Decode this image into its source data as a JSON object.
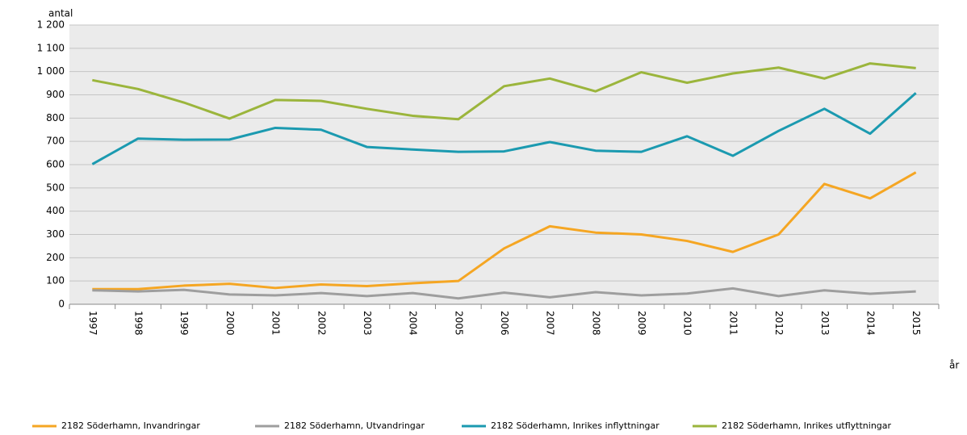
{
  "chart_data": {
    "type": "line",
    "ylabel": "antal",
    "xlabel": "år",
    "categories": [
      "1997",
      "1998",
      "1999",
      "2000",
      "2001",
      "2002",
      "2003",
      "2004",
      "2005",
      "2006",
      "2007",
      "2008",
      "2009",
      "2010",
      "2011",
      "2012",
      "2013",
      "2014",
      "2015"
    ],
    "series": [
      {
        "name": "2182 Söderhamn, Invandringar",
        "color": "#f5a623",
        "values": [
          65,
          65,
          80,
          88,
          70,
          85,
          78,
          90,
          100,
          240,
          335,
          308,
          300,
          272,
          225,
          300,
          517,
          455,
          567
        ]
      },
      {
        "name": "2182 Söderhamn, Utvandringar",
        "color": "#9e9e9e",
        "values": [
          60,
          55,
          62,
          42,
          38,
          48,
          35,
          48,
          25,
          50,
          30,
          52,
          38,
          46,
          68,
          35,
          60,
          45,
          55
        ]
      },
      {
        "name": "2182 Söderhamn, Inrikes inflyttningar",
        "color": "#1b9ab0",
        "values": [
          602,
          712,
          707,
          708,
          758,
          750,
          676,
          665,
          655,
          657,
          697,
          660,
          655,
          722,
          638,
          745,
          840,
          733,
          908
        ]
      },
      {
        "name": "2182 Söderhamn, Inrikes utflyttningar",
        "color": "#9bb53c",
        "values": [
          963,
          925,
          867,
          798,
          878,
          874,
          840,
          810,
          795,
          937,
          970,
          915,
          997,
          952,
          992,
          1017,
          970,
          1035,
          1015
        ]
      }
    ],
    "ylim": [
      0,
      1200
    ],
    "yticks": [
      0,
      100,
      200,
      300,
      400,
      500,
      600,
      700,
      800,
      900,
      {
        "value": 1000,
        "label": "1 000"
      },
      {
        "value": 1100,
        "label": "1 100"
      },
      {
        "value": 1200,
        "label": "1 200"
      }
    ],
    "grid": true
  }
}
